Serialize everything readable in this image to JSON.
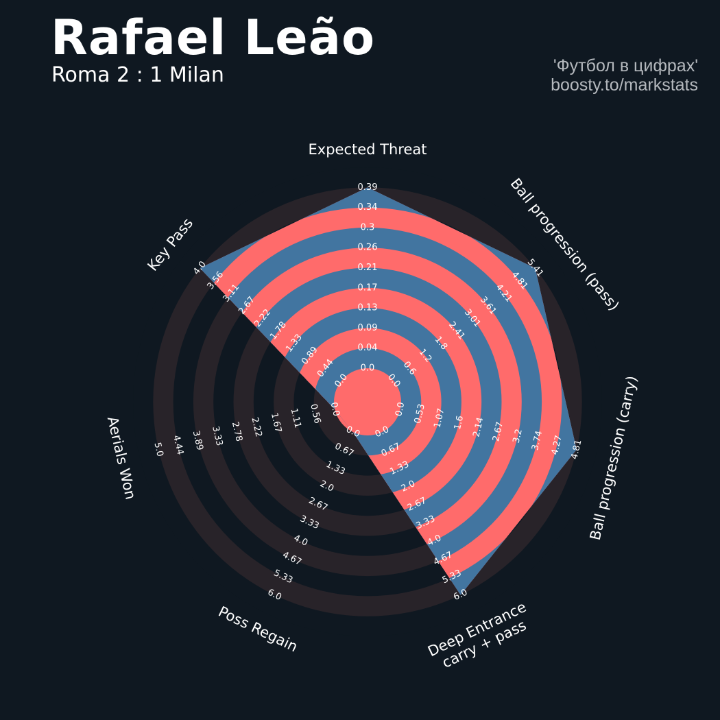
{
  "header": {
    "title": "Rafael Leão",
    "subtitle": "Roma 2 : 1 Milan",
    "credit_line1": "'Футбол в цифрах'",
    "credit_line2": "boosty.to/markstats"
  },
  "colors": {
    "background": "#0f1821",
    "ring_dark": "#282329",
    "ring_inner": "#0f1821",
    "value_fill": "#4275a0",
    "ring_highlight": "#ff6b6b",
    "label_text": "#ffffff"
  },
  "chart_data": {
    "type": "radar",
    "title": "Rafael Leão",
    "subtitle": "Roma 2 : 1 Milan",
    "rings": 10,
    "parameters": [
      {
        "name": "Expected Threat",
        "min": 0.0,
        "max": 0.39,
        "value": 0.39,
        "ticks": [
          "0.0",
          "0.04",
          "0.09",
          "0.13",
          "0.17",
          "0.21",
          "0.26",
          "0.3",
          "0.34",
          "0.39"
        ]
      },
      {
        "name": "Ball progression (pass)",
        "min": 0.0,
        "max": 5.41,
        "value": 5.41,
        "ticks": [
          "0.0",
          "0.6",
          "1.2",
          "1.8",
          "2.41",
          "3.01",
          "3.61",
          "4.21",
          "4.81",
          "5.41"
        ]
      },
      {
        "name": "Ball progression (carry)",
        "min": 0.0,
        "max": 4.81,
        "value": 4.81,
        "ticks": [
          "0.0",
          "0.53",
          "1.07",
          "1.6",
          "2.14",
          "2.67",
          "3.2",
          "3.74",
          "4.27",
          "4.81"
        ]
      },
      {
        "name": "Deep Entrance\ncarry + pass",
        "min": 0.0,
        "max": 6.0,
        "value": 6.0,
        "ticks": [
          "0.0",
          "0.67",
          "1.33",
          "2.0",
          "2.67",
          "3.33",
          "4.0",
          "4.67",
          "5.33",
          "6.0"
        ]
      },
      {
        "name": "Poss Regain",
        "min": 0.0,
        "max": 6.0,
        "value": 0.0,
        "ticks": [
          "0.0",
          "0.67",
          "1.33",
          "2.0",
          "2.67",
          "3.33",
          "4.0",
          "4.67",
          "5.33",
          "6.0"
        ]
      },
      {
        "name": "Aerials Won",
        "min": 0.0,
        "max": 5.0,
        "value": 0.0,
        "ticks": [
          "0.0",
          "0.56",
          "1.11",
          "1.67",
          "2.22",
          "2.78",
          "3.33",
          "3.89",
          "4.44",
          "5.0"
        ]
      },
      {
        "name": "Key Pass",
        "min": 0.0,
        "max": 4.0,
        "value": 4.0,
        "ticks": [
          "0.0",
          "0.44",
          "0.89",
          "1.33",
          "1.78",
          "2.22",
          "2.67",
          "3.11",
          "3.56",
          "4.0"
        ]
      }
    ]
  }
}
